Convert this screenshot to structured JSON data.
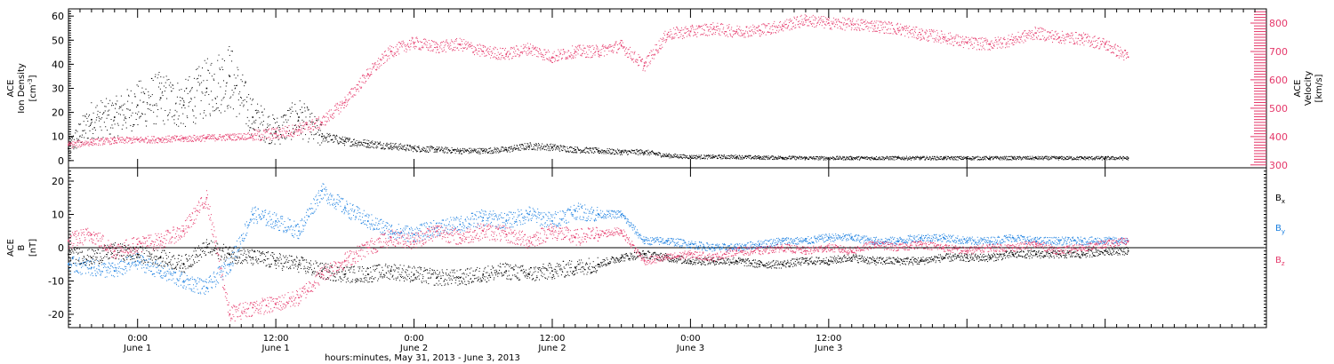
{
  "chart_data": [
    {
      "type": "scatter",
      "panel": "top",
      "ylabel": {
        "line1": "ACE",
        "line2": "Ion Density",
        "line3": "[cm",
        "line3_sup": "-3",
        "line3_end": "]"
      },
      "ylabel_right": {
        "line1": "ACE",
        "line2": "Velocity",
        "line3": "[km/s]"
      },
      "ylim": [
        -3,
        63
      ],
      "ylim_right": [
        290,
        850
      ],
      "yticks": [
        0,
        10,
        20,
        30,
        40,
        50,
        60
      ],
      "yticks_right": [
        300,
        400,
        500,
        600,
        700,
        800
      ],
      "series": [
        {
          "axis": "left",
          "color": "#000000",
          "x": [
            0,
            2,
            4,
            6,
            8,
            10,
            12,
            14,
            16,
            18,
            20,
            22,
            24,
            26,
            28,
            30,
            32,
            34,
            36,
            38,
            40,
            42,
            44,
            46,
            48,
            50,
            52,
            54,
            56,
            58,
            60,
            62,
            64,
            66,
            68,
            70,
            72,
            74,
            76,
            78,
            80,
            82,
            84,
            86,
            88,
            90,
            92
          ],
          "values": [
            5,
            17,
            18,
            23,
            26,
            23,
            30,
            35,
            18,
            12,
            18,
            10,
            8,
            7,
            6,
            5,
            4.5,
            4,
            4,
            4.5,
            6,
            5.5,
            4.5,
            4,
            3.5,
            3.5,
            2,
            1.5,
            1.5,
            1.5,
            1.2,
            1.2,
            1,
            1,
            1,
            1,
            1,
            1,
            1,
            1,
            1,
            1,
            1,
            1,
            1,
            1,
            1
          ]
        },
        {
          "axis": "right",
          "color": "#e5386a",
          "x": [
            0,
            2,
            4,
            6,
            8,
            10,
            12,
            14,
            16,
            18,
            20,
            22,
            24,
            26,
            28,
            30,
            32,
            34,
            36,
            38,
            40,
            42,
            44,
            46,
            48,
            50,
            52,
            54,
            56,
            58,
            60,
            62,
            64,
            66,
            68,
            70,
            72,
            74,
            76,
            78,
            80,
            82,
            84,
            86,
            88,
            90,
            92
          ],
          "values": [
            370,
            380,
            385,
            388,
            390,
            392,
            395,
            398,
            402,
            410,
            425,
            450,
            520,
            620,
            700,
            730,
            715,
            725,
            700,
            690,
            710,
            680,
            700,
            700,
            720,
            650,
            760,
            770,
            780,
            770,
            775,
            790,
            810,
            800,
            795,
            790,
            780,
            760,
            750,
            730,
            725,
            740,
            765,
            750,
            745,
            725,
            680
          ]
        }
      ]
    },
    {
      "type": "scatter",
      "panel": "bottom",
      "ylabel": {
        "line1": "ACE",
        "line2": "B",
        "line3": "[nT]"
      },
      "ylim": [
        -24,
        24
      ],
      "yticks": [
        -20,
        -10,
        0,
        10,
        20
      ],
      "legend_position": "right",
      "series": [
        {
          "name": "B",
          "name_sub": "x",
          "color": "#000000",
          "x": [
            0,
            2,
            4,
            6,
            8,
            10,
            12,
            14,
            16,
            18,
            20,
            22,
            24,
            26,
            28,
            30,
            32,
            34,
            36,
            38,
            40,
            42,
            44,
            46,
            48,
            50,
            52,
            54,
            56,
            58,
            60,
            62,
            64,
            66,
            68,
            70,
            72,
            74,
            76,
            78,
            80,
            82,
            84,
            86,
            88,
            90,
            92
          ],
          "values": [
            -2,
            -3,
            -1,
            -2,
            -3,
            -5,
            0,
            -2,
            -3,
            -4,
            -5,
            -7,
            -8,
            -8,
            -7,
            -8,
            -9,
            -9,
            -8,
            -7,
            -8,
            -7,
            -6,
            -5,
            -3,
            -2,
            -3,
            -4,
            -4,
            -4,
            -5,
            -5,
            -4,
            -4,
            -3,
            -4,
            -4,
            -4,
            -3,
            -3,
            -3,
            -2,
            -2,
            -2,
            -2,
            -1,
            -1
          ]
        },
        {
          "name": "B",
          "name_sub": "y",
          "color": "#1a7fe0",
          "x": [
            0,
            2,
            4,
            6,
            8,
            10,
            12,
            14,
            16,
            18,
            20,
            22,
            24,
            26,
            28,
            30,
            32,
            34,
            36,
            38,
            40,
            42,
            44,
            46,
            48,
            50,
            52,
            54,
            56,
            58,
            60,
            62,
            64,
            66,
            68,
            70,
            72,
            74,
            76,
            78,
            80,
            82,
            84,
            86,
            88,
            90,
            92
          ],
          "values": [
            -5,
            -6,
            -7,
            -4,
            -7,
            -10,
            -12,
            -5,
            10,
            8,
            5,
            17,
            12,
            8,
            5,
            4,
            6,
            7,
            9,
            8,
            10,
            8,
            11,
            10,
            10,
            2,
            2,
            1,
            0,
            0,
            1,
            2,
            2,
            3,
            3,
            2,
            2,
            3,
            3,
            2,
            2,
            3,
            2,
            2,
            2,
            2,
            2
          ]
        },
        {
          "name": "B",
          "name_sub": "z",
          "color": "#e5386a",
          "x": [
            0,
            2,
            4,
            6,
            8,
            10,
            12,
            14,
            16,
            18,
            20,
            22,
            24,
            26,
            28,
            30,
            32,
            34,
            36,
            38,
            40,
            42,
            44,
            46,
            48,
            50,
            52,
            54,
            56,
            58,
            60,
            62,
            64,
            66,
            68,
            70,
            72,
            74,
            76,
            78,
            80,
            82,
            84,
            86,
            88,
            90,
            92
          ],
          "values": [
            2,
            4,
            -1,
            1,
            2,
            5,
            15,
            -20,
            -18,
            -17,
            -15,
            -8,
            -4,
            0,
            3,
            2,
            5,
            3,
            5,
            4,
            2,
            5,
            3,
            4,
            5,
            -4,
            -3,
            -2,
            -3,
            -1,
            -1,
            0,
            -1,
            0,
            -1,
            1,
            0,
            1,
            0,
            -1,
            0,
            0,
            1,
            -1,
            0,
            1,
            2
          ]
        }
      ]
    }
  ],
  "time_axis": {
    "title": "hours:minutes, May 31, 2013 - June  3, 2013",
    "hours": [
      6,
      18,
      30,
      42,
      54,
      66,
      78,
      90
    ],
    "tick_labels": [
      {
        "hour": 6,
        "time": "0:00",
        "date": "June 1"
      },
      {
        "hour": 18,
        "time": "12:00",
        "date": "June 1"
      },
      {
        "hour": 30,
        "time": "0:00",
        "date": "June 2"
      },
      {
        "hour": 42,
        "time": "12:00",
        "date": "June 2"
      },
      {
        "hour": 54,
        "time": "0:00",
        "date": "June 3"
      },
      {
        "hour": 66,
        "time": "12:00",
        "date": "June 3"
      }
    ],
    "xlim": [
      0,
      104
    ]
  },
  "colors": {
    "black": "#000000",
    "pink": "#e5386a",
    "blue": "#1a7fe0"
  }
}
